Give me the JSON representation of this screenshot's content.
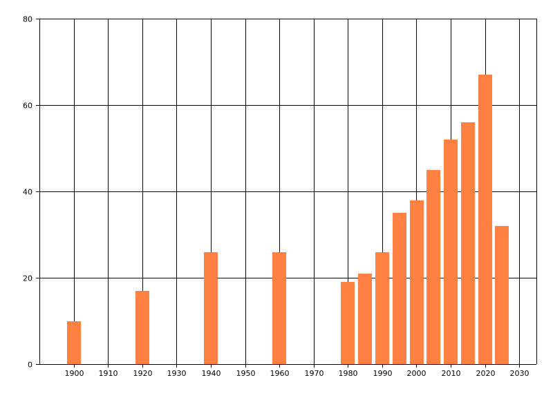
{
  "chart_data": {
    "type": "bar",
    "title": "",
    "xlabel": "",
    "ylabel": "",
    "x": [
      1900,
      1920,
      1940,
      1960,
      1980,
      1985,
      1990,
      1995,
      2000,
      2005,
      2010,
      2015,
      2020,
      2025
    ],
    "values": [
      10,
      17,
      26,
      26,
      19,
      21,
      26,
      35,
      38,
      45,
      52,
      56,
      67,
      32
    ],
    "bar_width": 4,
    "xlim": [
      1890,
      2035
    ],
    "ylim": [
      0,
      80
    ],
    "xticks": [
      1900,
      1910,
      1920,
      1930,
      1940,
      1950,
      1960,
      1970,
      1980,
      1990,
      2000,
      2010,
      2020,
      2030
    ],
    "yticks": [
      0,
      20,
      40,
      60,
      80
    ],
    "grid": true,
    "legend": "none",
    "bar_color": "#FF8040",
    "grid_color": "#000000"
  }
}
